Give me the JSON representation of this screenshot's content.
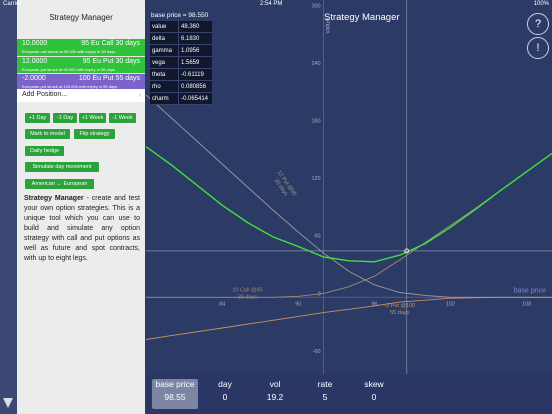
{
  "status_bar": {
    "carrier": "Carrier",
    "time": "2:54 PM",
    "battery": "100%"
  },
  "sidebar": {
    "title": "Strategy Manager",
    "positions": [
      {
        "quantity": "10.0000",
        "name": "95 Eu Call 30 days",
        "description": "European call struck at 95.000 with expiry in 30 days",
        "color": "#2fc23a"
      },
      {
        "quantity": "12.0000",
        "name": "95 Eu Put 30 days",
        "description": "European put struck at 95.000 with expiry in 30 days",
        "color": "#2fc23a"
      },
      {
        "quantity": "-2.0000",
        "name": "100 Eu Put 55 days",
        "description": "European put struck at 100.000 with expiry in 55 days",
        "color": "#7a64c9"
      }
    ],
    "add_position": "Add Position...",
    "buttons": {
      "plus_1_day": "+1 Day",
      "minus_1_day": "-1 Day",
      "plus_1_week": "+1 Week",
      "minus_1_week": "-1 Week",
      "mark_to_model": "Mark to model",
      "flip_strategy": "Flip strategy",
      "daily_hedge": "Daily hedge",
      "simulate_day": "Simulate day movement",
      "american_european": "American ↔ European"
    },
    "help_title": "Strategy Manager",
    "help_body": " - create and test your own option strategies. This is a unique tool which you can use to build and simulate any option strategy with call and put options as well as future and spot contracts, with up to eight legs."
  },
  "header": {
    "title": "Strategy Manager",
    "help_label": "?",
    "alert_label": "!"
  },
  "greeks": {
    "header": "base price = 98.550",
    "rows": [
      {
        "k": "value",
        "v": "48.360"
      },
      {
        "k": "delta",
        "v": "6.1830"
      },
      {
        "k": "gamma",
        "v": "1.0956"
      },
      {
        "k": "vega",
        "v": "1.5659"
      },
      {
        "k": "theta",
        "v": "-0.61119"
      },
      {
        "k": "rho",
        "v": "0.080856"
      },
      {
        "k": "charm",
        "v": "-0.065414"
      }
    ]
  },
  "chart_data": {
    "type": "line",
    "ylabel": "value",
    "xlabel": "base price",
    "ylim": [
      -80,
      310
    ],
    "xlim": [
      78,
      110
    ],
    "x_ticks": [
      84,
      90,
      96,
      102,
      108
    ],
    "y_ticks": [
      -60,
      0,
      60,
      120,
      180,
      240,
      300
    ],
    "crosshair": {
      "x": 98.55,
      "y": 48.36
    },
    "series": [
      {
        "name": "12 Put @95 30 days",
        "color": "#9a9a9a",
        "points": [
          [
            78,
            211
          ],
          [
            80,
            187
          ],
          [
            82,
            163
          ],
          [
            84,
            139
          ],
          [
            86,
            115
          ],
          [
            88,
            91
          ],
          [
            90,
            68
          ],
          [
            92,
            46
          ],
          [
            94,
            27
          ],
          [
            96,
            13
          ],
          [
            98,
            5
          ],
          [
            100,
            2
          ],
          [
            102,
            0
          ],
          [
            110,
            0
          ]
        ]
      },
      {
        "name": "10 Call @95 30 days",
        "color": "#9c8f6c",
        "points": [
          [
            78,
            0
          ],
          [
            88,
            0
          ],
          [
            90,
            1
          ],
          [
            92,
            4
          ],
          [
            94,
            11
          ],
          [
            96,
            22
          ],
          [
            98,
            39
          ],
          [
            100,
            57
          ],
          [
            102,
            75
          ],
          [
            104,
            93
          ],
          [
            106,
            112
          ],
          [
            108,
            131
          ],
          [
            110,
            150
          ]
        ]
      },
      {
        "name": "-2 Put @100 55 days",
        "color": "#c9905e",
        "points": [
          [
            78,
            -44
          ],
          [
            80,
            -40
          ],
          [
            84,
            -32
          ],
          [
            88,
            -24
          ],
          [
            92,
            -16
          ],
          [
            96,
            -9
          ],
          [
            98,
            -5
          ],
          [
            100,
            -3
          ],
          [
            102,
            -1
          ],
          [
            106,
            0
          ],
          [
            110,
            0
          ]
        ]
      },
      {
        "name": "",
        "color": "#3fe03f",
        "points": [
          [
            78,
            157
          ],
          [
            80,
            138
          ],
          [
            82,
            117
          ],
          [
            84,
            96
          ],
          [
            86,
            78
          ],
          [
            88,
            63
          ],
          [
            90,
            53
          ],
          [
            92,
            42
          ],
          [
            94,
            38
          ],
          [
            96,
            37
          ],
          [
            98,
            44
          ],
          [
            100,
            56
          ],
          [
            102,
            73
          ],
          [
            104,
            92
          ],
          [
            106,
            112
          ],
          [
            108,
            131
          ],
          [
            110,
            150
          ]
        ]
      }
    ],
    "curve_labels": [
      {
        "series": 0,
        "text": "12 Put @95",
        "sub": "30 days"
      },
      {
        "series": 1,
        "text": "10 Call @95",
        "sub": "30 days"
      },
      {
        "series": 2,
        "text": "-2 Put @100",
        "sub": "55 days"
      }
    ]
  },
  "bottom_bar": {
    "fields": [
      {
        "label": "base price",
        "value": "98.55",
        "selected": true
      },
      {
        "label": "day",
        "value": "0"
      },
      {
        "label": "vol",
        "value": "19.2"
      },
      {
        "label": "rate",
        "value": "5"
      },
      {
        "label": "skew",
        "value": "0"
      }
    ]
  }
}
